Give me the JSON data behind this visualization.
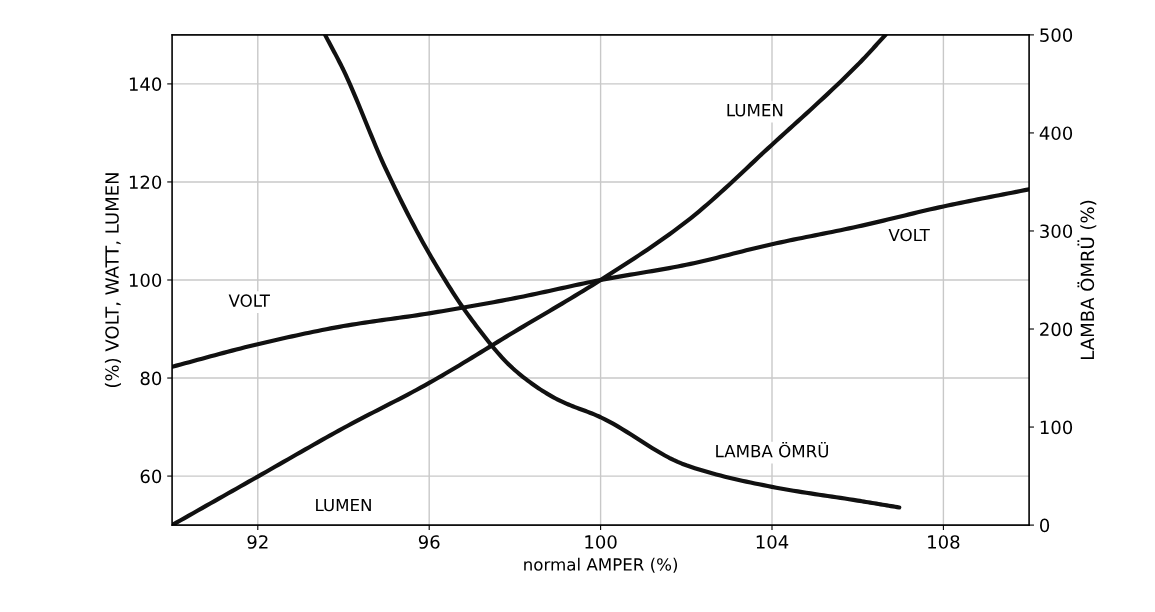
{
  "chart_data": {
    "type": "line",
    "xlabel": "normal AMPER (%)",
    "ylabel": "(%) VOLT, WATT, LUMEN",
    "y2label": "LAMBA ÖMRÜ (%)",
    "xlim": [
      90,
      110
    ],
    "xticks": [
      92,
      96,
      100,
      104,
      108
    ],
    "ylim": [
      50,
      150
    ],
    "yticks": [
      60,
      80,
      100,
      120,
      140
    ],
    "y2lim": [
      0,
      500
    ],
    "y2ticks": [
      0,
      100,
      200,
      300,
      400,
      500
    ],
    "grid": true,
    "marker": "none",
    "line_style": "solid",
    "series": [
      {
        "name": "VOLT",
        "color": "#111111",
        "x": [
          90,
          92,
          94,
          96,
          98,
          100,
          102,
          104,
          106,
          108,
          110
        ],
        "values": [
          82.3,
          86.9,
          90.6,
          93.2,
          96.3,
          100,
          103.1,
          107.3,
          110.9,
          115.0,
          118.5
        ]
      },
      {
        "name": "LUMEN",
        "color": "#111111",
        "x": [
          90,
          92,
          94,
          96,
          98,
          100,
          102,
          104,
          106,
          106.65
        ],
        "values": [
          50,
          59.9,
          69.8,
          79.0,
          89.5,
          100,
          111.9,
          127.6,
          143.9,
          150
        ]
      },
      {
        "name": "LAMBA ÖMRÜ",
        "color": "#111111",
        "axis": "y2",
        "x": [
          93.57,
          94,
          95,
          96,
          97,
          98,
          99,
          100,
          102,
          104,
          106,
          106.97
        ],
        "values": [
          500,
          464,
          362,
          277,
          209,
          158,
          128,
          110,
          61,
          39,
          25,
          18
        ]
      }
    ]
  }
}
